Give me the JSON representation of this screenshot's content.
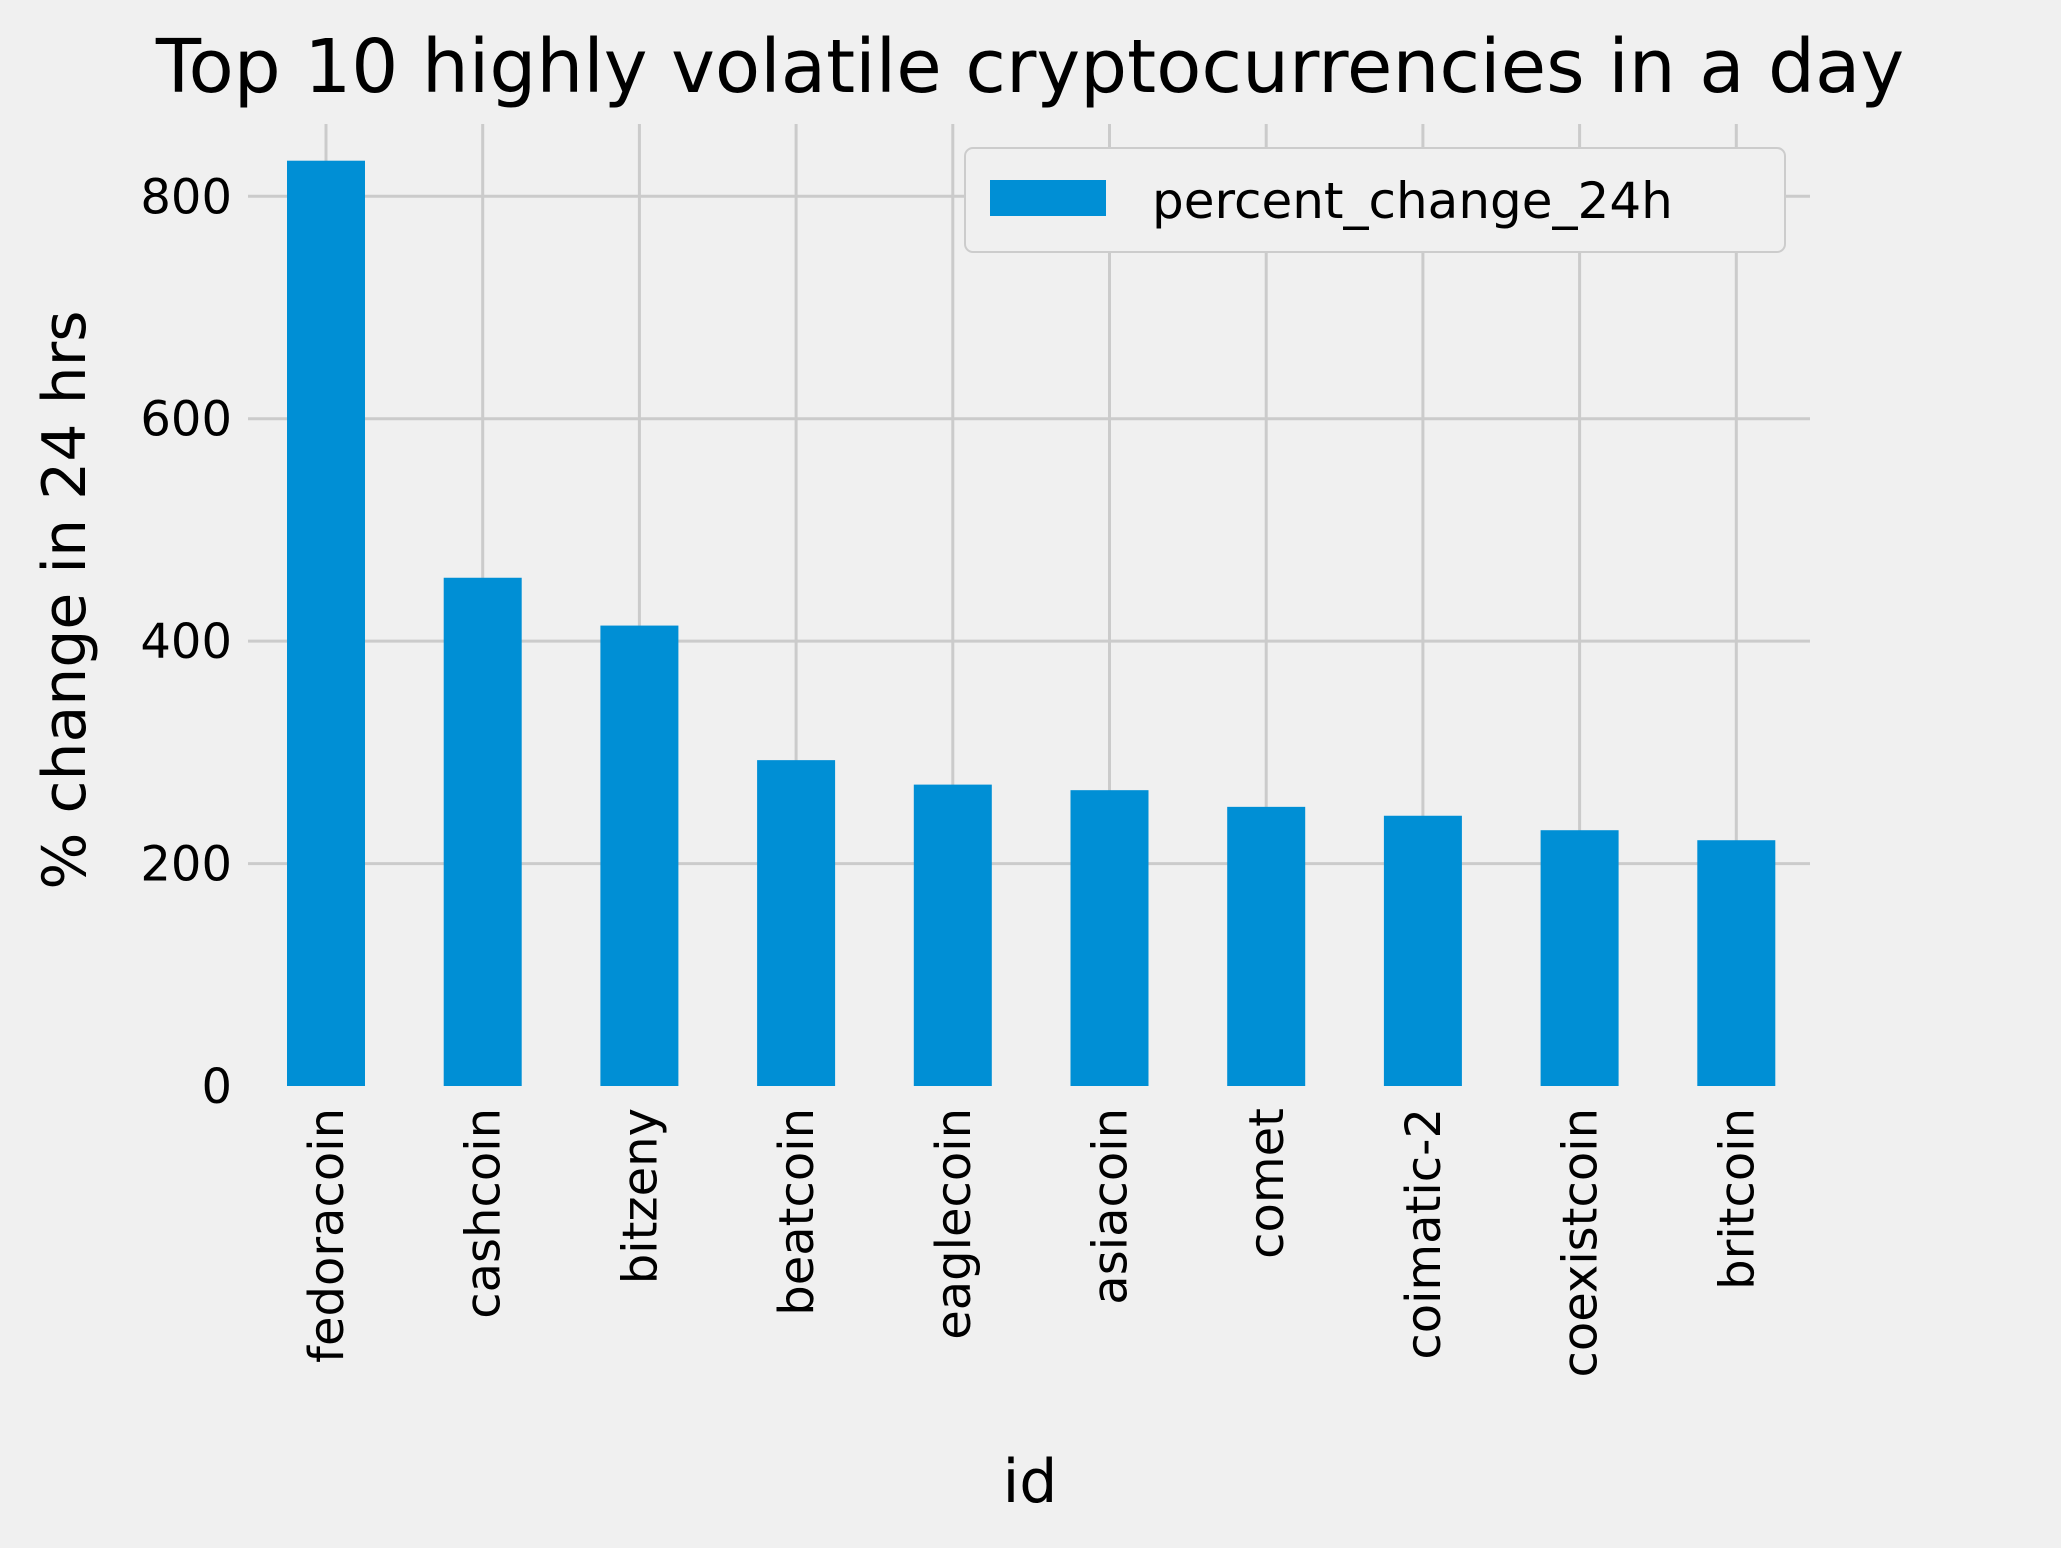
{
  "chart_data": {
    "type": "bar",
    "title": "Top 10 highly volatile cryptocurrencies in a day",
    "xlabel": "id",
    "ylabel": "% change in 24 hrs",
    "categories": [
      "fedoracoin",
      "cashcoin",
      "bitzeny",
      "beatcoin",
      "eaglecoin",
      "asiacoin",
      "comet",
      "coimatic-2",
      "coexistcoin",
      "britcoin"
    ],
    "series": [
      {
        "name": "percent_change_24h",
        "values": [
          832,
          457,
          414,
          293,
          271,
          266,
          251,
          243,
          230,
          221
        ]
      }
    ],
    "yticks": [
      0,
      200,
      400,
      600,
      800
    ],
    "ylim": [
      0,
      865
    ],
    "grid": true,
    "legend_position": "top-right",
    "bar_color": "#008fd5",
    "background_color": "#f0f0f0",
    "grid_color": "#cbcbcb"
  }
}
